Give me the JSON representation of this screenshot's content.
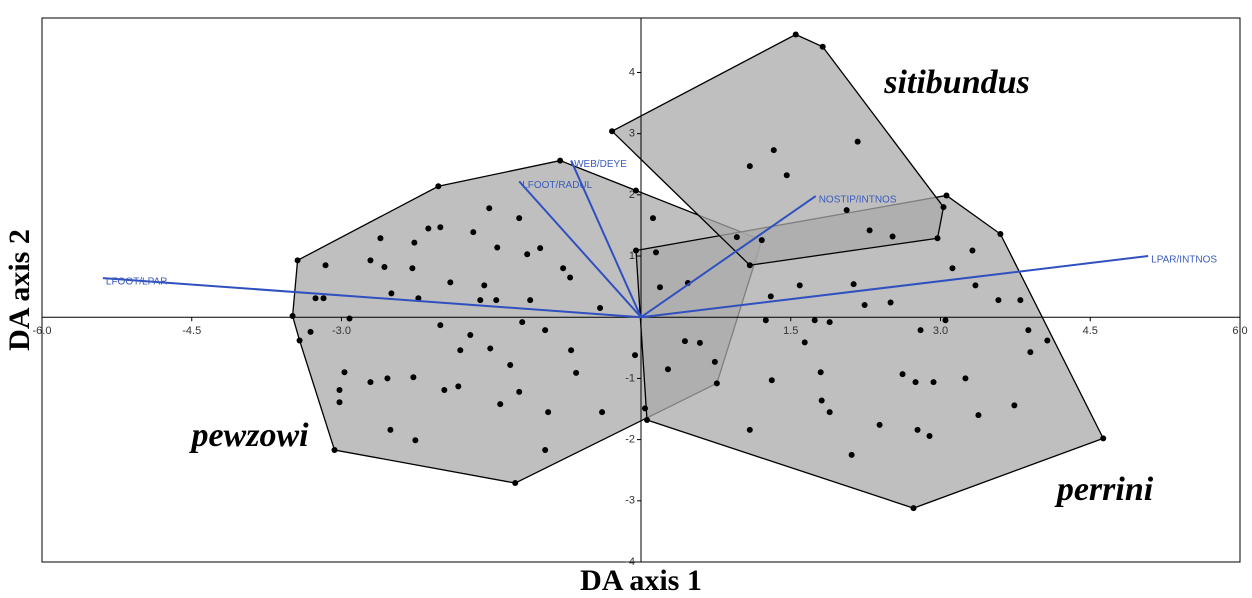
{
  "chart_data": {
    "type": "scatter",
    "x_label": "DA axis 1",
    "y_label": "DA axis 2",
    "xlim": [
      -6,
      6
    ],
    "ylim": [
      -4,
      4.89
    ],
    "xticks": [
      {
        "value": -6,
        "label": "-6.0"
      },
      {
        "value": -4.5,
        "label": "-4.5"
      },
      {
        "value": -3,
        "label": "-3.0"
      },
      {
        "value": 1.5,
        "label": "1.5"
      },
      {
        "value": 3,
        "label": "3.0"
      },
      {
        "value": 4.5,
        "label": "4.5"
      },
      {
        "value": 6,
        "label": "6.0"
      }
    ],
    "yticks": [
      -4,
      -3,
      -2,
      -1,
      1,
      2,
      3,
      4
    ],
    "hull_fill": "#a9a9a9",
    "point_color": "#000000",
    "vector_color": "#3050c0",
    "series": [
      {
        "name": "pewzowi",
        "color": "#a9a9a9",
        "x": [
          -3.44,
          -2.03,
          -0.81,
          -0.05,
          1.21,
          0.76,
          0.04,
          -0.96,
          -1.26,
          -3.07,
          -3.42,
          -3.49,
          -3.16,
          -3.26,
          -3.18,
          -2.71,
          -2.61,
          -2.27,
          -2.13,
          -2.01,
          -2.57,
          -2.29,
          -2.5,
          -2.23,
          -1.91,
          -1.52,
          -1.68,
          -1.44,
          -1.57,
          -1.61,
          -1.45,
          -1.22,
          -1.14,
          -1.01,
          -0.78,
          -0.71,
          -0.41,
          0.12,
          0.15,
          0.19,
          0.47,
          0.44,
          0.59,
          0.74,
          0.27,
          -3.31,
          -2.97,
          -3.02,
          -3.02,
          -2.71,
          -2.54,
          -2.28,
          -1.97,
          -1.83,
          -2.26,
          -2.51,
          -1.81,
          -1.71,
          -1.51,
          -1.31,
          -1.41,
          -1.22,
          -0.93,
          -0.65,
          -0.7,
          -0.39,
          -0.06,
          -2.92,
          -2.01,
          -1.19,
          -0.96,
          -1.11
        ],
        "y": [
          0.93,
          2.14,
          2.56,
          2.07,
          1.26,
          -1.08,
          -1.49,
          -2.17,
          -2.71,
          -2.17,
          -0.38,
          0.02,
          0.85,
          0.31,
          0.31,
          0.93,
          1.29,
          1.22,
          1.45,
          1.47,
          0.82,
          0.8,
          0.39,
          0.31,
          0.57,
          1.78,
          1.39,
          1.14,
          0.52,
          0.28,
          0.28,
          1.62,
          1.03,
          1.13,
          0.8,
          0.65,
          0.15,
          1.62,
          1.06,
          0.49,
          0.56,
          -0.39,
          -0.42,
          -0.73,
          -0.85,
          -0.24,
          -0.9,
          -1.19,
          -1.39,
          -1.06,
          -1.0,
          -0.98,
          -1.19,
          -1.13,
          -2.01,
          -1.84,
          -0.54,
          -0.29,
          -0.51,
          -0.78,
          -1.42,
          -1.22,
          -1.55,
          -0.91,
          -0.54,
          -1.55,
          -0.62,
          -0.02,
          -0.13,
          -0.08,
          -0.21,
          0.28
        ]
      },
      {
        "name": "perrini",
        "color": "#a9a9a9",
        "x": [
          -0.05,
          3.06,
          3.6,
          4.07,
          4.63,
          2.73,
          0.06,
          1.25,
          1.3,
          1.59,
          1.74,
          1.89,
          1.64,
          1.8,
          1.81,
          1.89,
          1.31,
          1.09,
          2.11,
          2.39,
          2.62,
          2.75,
          2.93,
          2.77,
          2.89,
          3.25,
          3.38,
          3.74,
          3.9,
          3.88,
          3.58,
          3.8,
          3.05,
          2.8,
          2.5,
          2.24,
          2.13,
          3.35,
          3.12,
          3.32
        ],
        "y": [
          1.09,
          1.99,
          1.36,
          -0.38,
          -1.98,
          -3.12,
          -1.68,
          -0.05,
          0.34,
          0.52,
          -0.05,
          -0.08,
          -0.41,
          -0.9,
          -1.36,
          -1.55,
          -1.03,
          -1.84,
          -2.25,
          -1.76,
          -0.93,
          -1.06,
          -1.06,
          -1.84,
          -1.94,
          -1.0,
          -1.6,
          -1.44,
          -0.57,
          -0.21,
          0.28,
          0.28,
          -0.05,
          -0.21,
          0.24,
          0.2,
          0.54,
          0.52,
          0.8,
          1.09
        ]
      },
      {
        "name": "sitibundus",
        "color": "#a9a9a9",
        "x": [
          -0.29,
          1.55,
          1.82,
          3.03,
          2.97,
          1.09,
          1.09,
          1.33,
          1.46,
          2.17,
          2.06,
          2.52,
          2.29,
          0.96
        ],
        "y": [
          3.04,
          4.62,
          4.42,
          1.8,
          1.29,
          0.85,
          2.47,
          2.73,
          2.32,
          2.87,
          1.75,
          1.32,
          1.42,
          1.31
        ]
      }
    ],
    "vectors": [
      {
        "label": "LFOOT/LPAR",
        "x": -5.39,
        "y": 0.64
      },
      {
        "label": "LFOOT/RADUL",
        "x": -1.22,
        "y": 2.22
      },
      {
        "label": "WEB/DEYE",
        "x": -0.7,
        "y": 2.56
      },
      {
        "label": "NOSTIP/INTNOS",
        "x": 1.75,
        "y": 1.98
      },
      {
        "label": "LPAR/INTNOS",
        "x": 5.08,
        "y": 1.0
      }
    ]
  }
}
